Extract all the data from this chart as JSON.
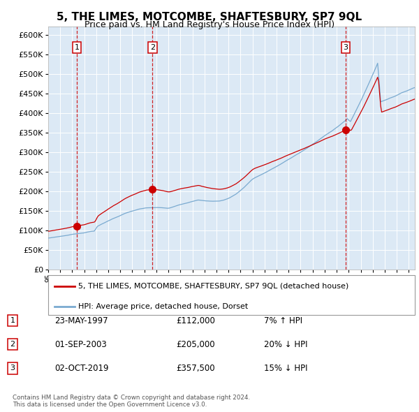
{
  "title": "5, THE LIMES, MOTCOMBE, SHAFTESBURY, SP7 9QL",
  "subtitle": "Price paid vs. HM Land Registry's House Price Index (HPI)",
  "background_color": "#ffffff",
  "plot_bg_color": "#dce9f5",
  "grid_color": "#ffffff",
  "purchase_dates": [
    1997.39,
    2003.67,
    2019.75
  ],
  "purchase_prices": [
    112000,
    205000,
    357500
  ],
  "purchase_labels": [
    "1",
    "2",
    "3"
  ],
  "vline_color": "#cc0000",
  "dot_color": "#cc0000",
  "hpi_line_color": "#7aaad0",
  "price_line_color": "#cc0000",
  "ylim": [
    0,
    620000
  ],
  "xlim": [
    1995.0,
    2025.5
  ],
  "legend_labels": [
    "5, THE LIMES, MOTCOMBE, SHAFTESBURY, SP7 9QL (detached house)",
    "HPI: Average price, detached house, Dorset"
  ],
  "table_rows": [
    {
      "num": "1",
      "date": "23-MAY-1997",
      "price": "£112,000",
      "change": "7% ↑ HPI"
    },
    {
      "num": "2",
      "date": "01-SEP-2003",
      "price": "£205,000",
      "change": "20% ↓ HPI"
    },
    {
      "num": "3",
      "date": "02-OCT-2019",
      "price": "£357,500",
      "change": "15% ↓ HPI"
    }
  ],
  "footer": "Contains HM Land Registry data © Crown copyright and database right 2024.\nThis data is licensed under the Open Government Licence v3.0."
}
